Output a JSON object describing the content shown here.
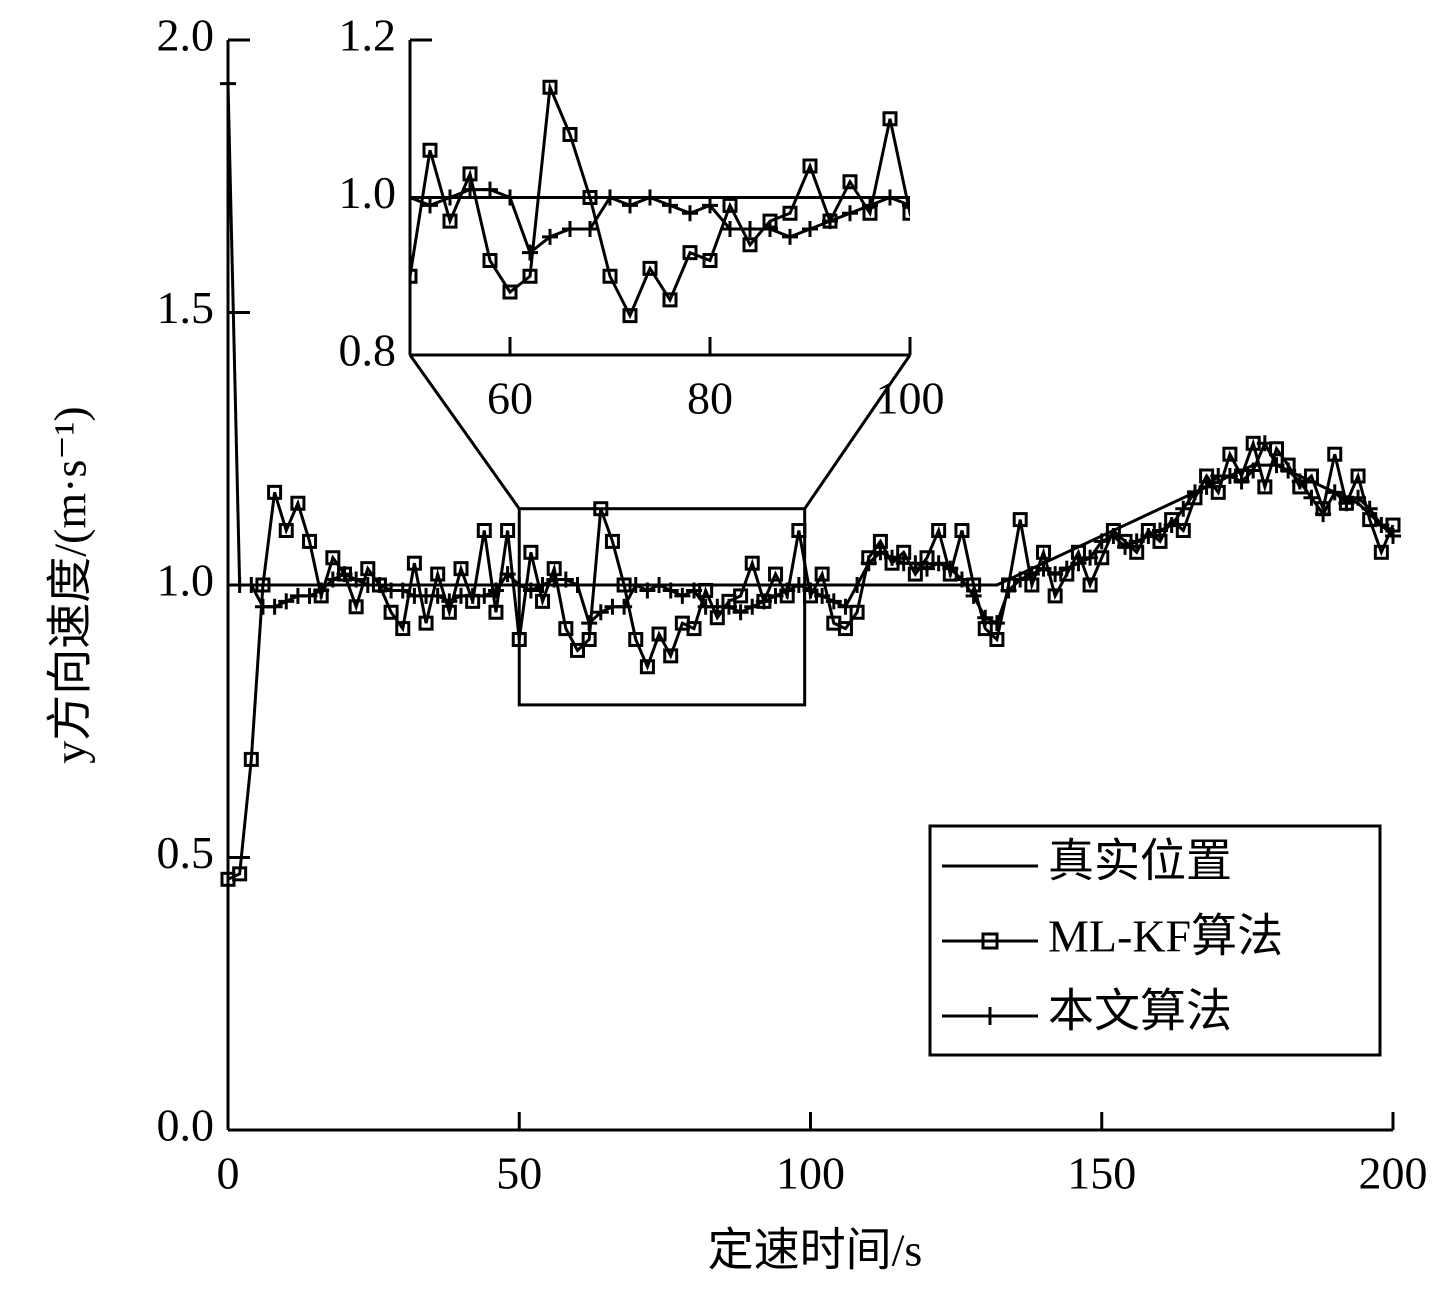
{
  "chart_data": {
    "type": "line",
    "xlabel": "定速时间/s",
    "ylabel": "y方向速度/(m·s⁻¹)",
    "x": [
      0,
      2,
      4,
      6,
      8,
      10,
      12,
      14,
      16,
      18,
      20,
      22,
      24,
      26,
      28,
      30,
      32,
      34,
      36,
      38,
      40,
      42,
      44,
      46,
      48,
      50,
      52,
      54,
      56,
      58,
      60,
      62,
      64,
      66,
      68,
      70,
      72,
      74,
      76,
      78,
      80,
      82,
      84,
      86,
      88,
      90,
      92,
      94,
      96,
      98,
      100,
      102,
      104,
      106,
      108,
      110,
      112,
      114,
      116,
      118,
      120,
      122,
      124,
      126,
      128,
      130,
      132,
      134,
      136,
      138,
      140,
      142,
      144,
      146,
      148,
      150,
      152,
      154,
      156,
      158,
      160,
      162,
      164,
      166,
      168,
      170,
      172,
      174,
      176,
      178,
      180,
      182,
      184,
      186,
      188,
      190,
      192,
      194,
      196,
      198,
      200
    ],
    "series": [
      {
        "name": "真实位置",
        "color": "#000000",
        "marker": "none",
        "values": [
          1.0,
          1.0,
          1.0,
          1.0,
          1.0,
          1.0,
          1.0,
          1.0,
          1.0,
          1.0,
          1.0,
          1.0,
          1.0,
          1.0,
          1.0,
          1.0,
          1.0,
          1.0,
          1.0,
          1.0,
          1.0,
          1.0,
          1.0,
          1.0,
          1.0,
          1.0,
          1.0,
          1.0,
          1.0,
          1.0,
          1.0,
          1.0,
          1.0,
          1.0,
          1.0,
          1.0,
          1.0,
          1.0,
          1.0,
          1.0,
          1.0,
          1.0,
          1.0,
          1.0,
          1.0,
          1.0,
          1.0,
          1.0,
          1.0,
          1.0,
          1.0,
          1.0,
          1.0,
          1.0,
          1.0,
          1.0,
          1.0,
          1.0,
          1.0,
          1.0,
          1.0,
          1.0,
          1.0,
          1.0,
          1.0,
          1.0,
          1.0,
          1.01,
          1.02,
          1.03,
          1.04,
          1.05,
          1.06,
          1.07,
          1.08,
          1.09,
          1.1,
          1.11,
          1.12,
          1.13,
          1.14,
          1.15,
          1.16,
          1.17,
          1.18,
          1.19,
          1.2,
          1.21,
          1.22,
          1.22,
          1.22,
          1.21,
          1.2,
          1.19,
          1.18,
          1.17,
          1.16,
          1.15,
          1.13,
          1.11,
          1.1
        ]
      },
      {
        "name": "ML-KF算法",
        "color": "#000000",
        "marker": "square",
        "values": [
          0.46,
          0.47,
          0.68,
          1.0,
          1.17,
          1.1,
          1.15,
          1.08,
          0.98,
          1.05,
          1.02,
          0.96,
          1.03,
          1.0,
          0.95,
          0.92,
          1.04,
          0.93,
          1.02,
          0.95,
          1.03,
          0.97,
          1.1,
          0.95,
          1.1,
          0.9,
          1.06,
          0.97,
          1.03,
          0.92,
          0.88,
          0.9,
          1.14,
          1.08,
          1.0,
          0.9,
          0.85,
          0.91,
          0.87,
          0.93,
          0.92,
          0.99,
          0.94,
          0.97,
          0.98,
          1.04,
          0.97,
          1.02,
          0.98,
          1.1,
          0.98,
          1.02,
          0.93,
          0.92,
          0.95,
          1.05,
          1.08,
          1.04,
          1.06,
          1.02,
          1.05,
          1.1,
          1.02,
          1.1,
          1.0,
          0.92,
          0.9,
          1.0,
          1.12,
          1.0,
          1.06,
          0.98,
          1.02,
          1.06,
          1.0,
          1.05,
          1.1,
          1.08,
          1.06,
          1.1,
          1.08,
          1.12,
          1.1,
          1.16,
          1.2,
          1.17,
          1.24,
          1.2,
          1.26,
          1.18,
          1.25,
          1.22,
          1.18,
          1.2,
          1.14,
          1.24,
          1.15,
          1.2,
          1.12,
          1.06,
          1.11
        ]
      },
      {
        "name": "本文算法",
        "color": "#000000",
        "marker": "plus",
        "values": [
          1.92,
          1.0,
          1.0,
          0.96,
          0.96,
          0.97,
          0.98,
          0.98,
          0.99,
          1.01,
          1.02,
          1.01,
          1.0,
          1.0,
          0.99,
          0.99,
          0.98,
          0.98,
          0.98,
          0.97,
          0.98,
          0.98,
          0.98,
          0.99,
          1.02,
          1.0,
          0.99,
          1.0,
          1.01,
          1.01,
          1.0,
          0.93,
          0.95,
          0.96,
          0.96,
          1.0,
          0.99,
          1.0,
          0.99,
          0.98,
          0.99,
          0.96,
          0.96,
          0.96,
          0.95,
          0.96,
          0.97,
          0.98,
          0.99,
          1.0,
          0.99,
          0.98,
          0.97,
          0.96,
          1.0,
          1.04,
          1.06,
          1.05,
          1.04,
          1.04,
          1.03,
          1.04,
          1.03,
          1.01,
          0.98,
          0.94,
          0.93,
          0.99,
          1.01,
          1.02,
          1.03,
          1.02,
          1.03,
          1.04,
          1.05,
          1.08,
          1.09,
          1.07,
          1.08,
          1.09,
          1.1,
          1.11,
          1.14,
          1.17,
          1.18,
          1.2,
          1.2,
          1.19,
          1.21,
          1.26,
          1.22,
          1.21,
          1.19,
          1.16,
          1.13,
          1.17,
          1.15,
          1.16,
          1.14,
          1.11,
          1.09
        ]
      }
    ],
    "xlim": [
      0,
      200
    ],
    "ylim": [
      0,
      2
    ],
    "xticks": [
      0,
      50,
      100,
      150,
      200
    ],
    "yticks": [
      {
        "value": 0,
        "label": "0.0"
      },
      0.5,
      {
        "value": 1,
        "label": "1.0"
      },
      1.5,
      {
        "value": 2,
        "label": "2.0"
      }
    ],
    "legend": "lower right",
    "inset": {
      "xlim": [
        50,
        100
      ],
      "ylim": [
        0.8,
        1.2
      ],
      "xticks": [
        60,
        80,
        100
      ],
      "yticks": [
        0.8,
        {
          "value": 1,
          "label": "1.0"
        },
        1.2
      ],
      "region": {
        "x": [
          50,
          99
        ],
        "y": [
          0.78,
          1.14
        ]
      }
    }
  }
}
